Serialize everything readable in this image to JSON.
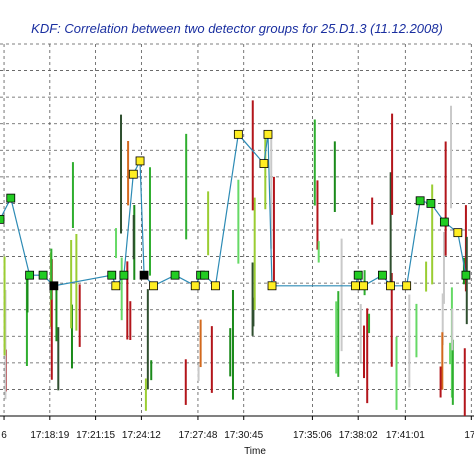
{
  "chart_data": {
    "type": "line",
    "title": "KDF: Correlation between two detector groups for 25.D1.3 (11.12.2008)",
    "xlabel": "Time",
    "ylabel": "",
    "x_ticks": [
      "6",
      "17:18:19",
      "17:21:15",
      "17:24:12",
      "17:27:48",
      "17:30:45",
      "17:35:06",
      "17:38:02",
      "17:41:01",
      "17:"
    ],
    "grid": true,
    "legend": "none",
    "colors": {
      "line": "#2d8bb5",
      "yellow_marker": "#ffee22",
      "green_marker": "#22cc22",
      "black_marker": "#000000",
      "grid": "#555555",
      "title": "#1a2fa0"
    },
    "series": [
      {
        "values_note": "",
        "x": [
          0.0,
          0.4,
          1.1,
          1.6,
          2.0,
          4.15,
          4.3,
          4.6,
          4.95,
          5.2,
          5.35,
          5.7,
          6.5,
          7.25,
          7.45,
          7.6,
          8.0,
          8.85,
          9.8,
          9.95,
          10.1,
          13.2,
          13.3,
          13.5,
          14.2,
          14.5,
          15.1,
          15.6,
          16.0,
          16.5,
          17.0,
          17.3
        ],
        "y": [
          7.4,
          8.2,
          5.3,
          5.3,
          4.9,
          5.3,
          4.9,
          5.3,
          9.1,
          9.6,
          5.3,
          4.9,
          5.3,
          4.9,
          5.3,
          5.3,
          4.9,
          10.6,
          9.5,
          10.6,
          4.9,
          4.9,
          5.3,
          4.9,
          5.3,
          4.9,
          4.9,
          8.1,
          8.0,
          7.3,
          6.9,
          5.3
        ]
      }
    ]
  }
}
